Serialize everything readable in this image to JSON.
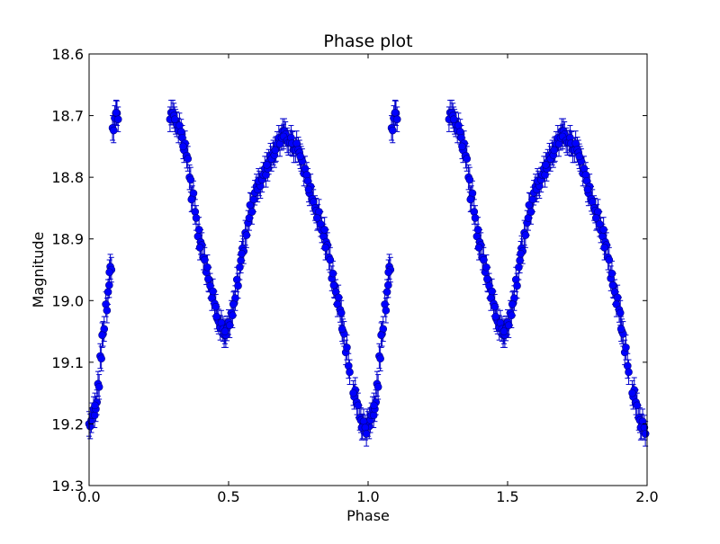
{
  "chart_data": {
    "type": "scatter",
    "title": "Phase plot",
    "xlabel": "Phase",
    "ylabel": "Magnitude",
    "xlim": [
      0.0,
      2.0
    ],
    "ylim": [
      18.6,
      19.3
    ],
    "y_inverted": true,
    "grid": false,
    "x_ticks": [
      "0.0",
      "0.5",
      "1.0",
      "1.5",
      "2.0"
    ],
    "y_ticks": [
      "18.6",
      "18.7",
      "18.8",
      "18.9",
      "19.0",
      "19.1",
      "19.2",
      "19.3"
    ],
    "marker_color": "#0000ff",
    "errorbar_color": "#0000cc",
    "series": [
      {
        "error": 0.02,
        "x": [
          0.0,
          0.008,
          0.016,
          0.024,
          0.032,
          0.04,
          0.05,
          0.06,
          0.068,
          0.076,
          0.084,
          0.092,
          0.1,
          0.29,
          0.3,
          0.31,
          0.32,
          0.33,
          0.34,
          0.35,
          0.36,
          0.37,
          0.38,
          0.39,
          0.4,
          0.41,
          0.42,
          0.43,
          0.44,
          0.45,
          0.46,
          0.47,
          0.48,
          0.49,
          0.5,
          0.51,
          0.52,
          0.53,
          0.54,
          0.55,
          0.56,
          0.57,
          0.58,
          0.59,
          0.6,
          0.61,
          0.62,
          0.63,
          0.64,
          0.65,
          0.66,
          0.67,
          0.68,
          0.69,
          0.7,
          0.71,
          0.72,
          0.73,
          0.74,
          0.75,
          0.76,
          0.77,
          0.78,
          0.79,
          0.8,
          0.81,
          0.82,
          0.83,
          0.84,
          0.85,
          0.86,
          0.87,
          0.88,
          0.89,
          0.9,
          0.91,
          0.92,
          0.93,
          0.95,
          0.96,
          0.97,
          0.98,
          0.99
        ],
        "y": [
          19.2,
          19.19,
          19.18,
          19.17,
          19.14,
          19.09,
          19.05,
          19.01,
          18.98,
          18.95,
          18.72,
          18.7,
          18.7,
          18.7,
          18.7,
          18.71,
          18.72,
          18.73,
          18.75,
          18.77,
          18.8,
          18.83,
          18.86,
          18.89,
          18.91,
          18.93,
          18.95,
          18.97,
          18.99,
          19.01,
          19.03,
          19.04,
          19.05,
          19.05,
          19.04,
          19.02,
          19.0,
          18.97,
          18.94,
          18.92,
          18.89,
          18.87,
          18.85,
          18.83,
          18.82,
          18.81,
          18.8,
          18.79,
          18.78,
          18.77,
          18.76,
          18.75,
          18.74,
          18.73,
          18.73,
          18.74,
          18.74,
          18.75,
          18.75,
          18.76,
          18.77,
          18.79,
          18.8,
          18.82,
          18.84,
          18.85,
          18.86,
          18.88,
          18.89,
          18.91,
          18.93,
          18.96,
          18.98,
          19.0,
          19.02,
          19.05,
          19.08,
          19.11,
          19.15,
          19.17,
          19.19,
          19.2,
          19.21
        ]
      }
    ]
  }
}
